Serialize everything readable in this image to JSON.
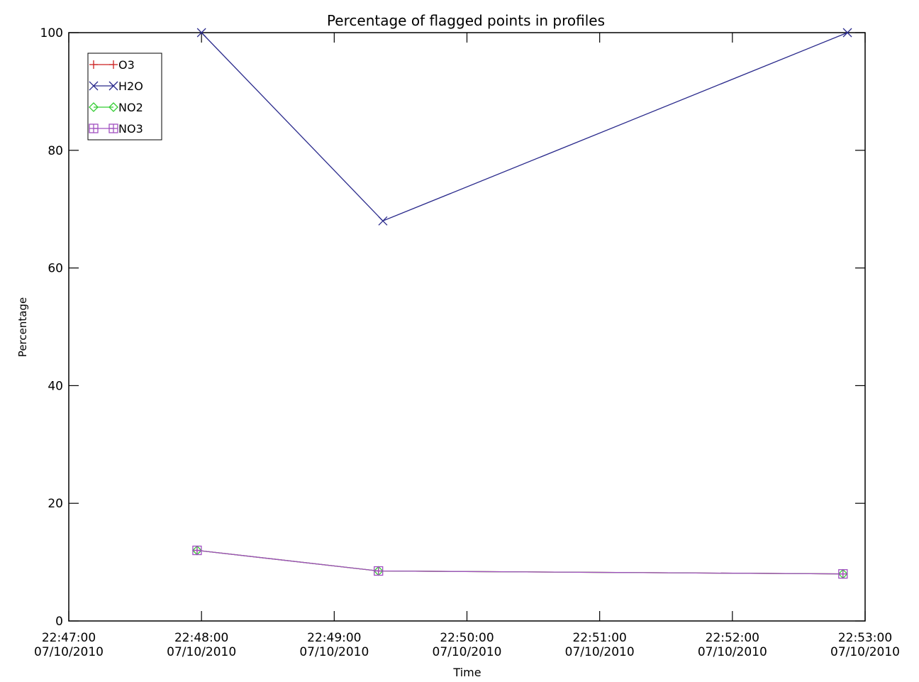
{
  "chart_data": {
    "type": "line",
    "title": "Percentage of flagged points in profiles",
    "xlabel": "Time",
    "ylabel": "Percentage",
    "ylim": [
      0,
      100
    ],
    "xlim": [
      "22:47:00 07/10/2010",
      "22:53:00 07/10/2010"
    ],
    "yticks": [
      "0",
      "20",
      "40",
      "60",
      "80",
      "100"
    ],
    "xticks": [
      {
        "time": "22:47:00",
        "date": "07/10/2010"
      },
      {
        "time": "22:48:00",
        "date": "07/10/2010"
      },
      {
        "time": "22:49:00",
        "date": "07/10/2010"
      },
      {
        "time": "22:50:00",
        "date": "07/10/2010"
      },
      {
        "time": "22:51:00",
        "date": "07/10/2010"
      },
      {
        "time": "22:52:00",
        "date": "07/10/2010"
      },
      {
        "time": "22:53:00",
        "date": "07/10/2010"
      }
    ],
    "grid": false,
    "legend_position": "top-left",
    "series": [
      {
        "name": "O3",
        "color": "#cc2222",
        "marker": "plus",
        "x": [
          "22:47:58",
          "22:49:20",
          "22:52:50"
        ],
        "values": [
          12,
          8.5,
          8
        ]
      },
      {
        "name": "H2O",
        "color": "#2a2a8c",
        "marker": "x",
        "x": [
          "22:48:00",
          "22:49:22",
          "22:52:52"
        ],
        "values": [
          100,
          68,
          100
        ]
      },
      {
        "name": "NO2",
        "color": "#33cc33",
        "marker": "diamond",
        "x": [
          "22:47:58",
          "22:49:20",
          "22:52:50"
        ],
        "values": [
          12,
          8.5,
          8
        ]
      },
      {
        "name": "NO3",
        "color": "#a050c0",
        "marker": "square",
        "x": [
          "22:47:58",
          "22:49:20",
          "22:52:50"
        ],
        "values": [
          12,
          8.5,
          8
        ]
      }
    ]
  }
}
